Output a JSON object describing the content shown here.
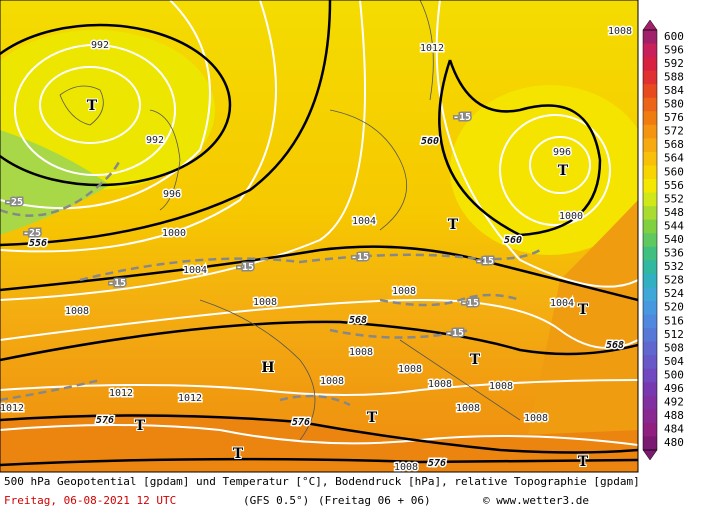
{
  "map": {
    "labels": [
      "992",
      "T",
      "992",
      "996",
      "1000",
      "1004",
      "1008",
      "1008",
      "1012",
      "1008",
      "1008",
      "1004",
      "T",
      "996",
      "T",
      "1000",
      "560",
      "560",
      "568",
      "568",
      "576",
      "576",
      "576",
      "556",
      "-15",
      "-15",
      "-15",
      "-15",
      "-15",
      "-15",
      "-15",
      "-25",
      "-25",
      "1004",
      "T",
      "T",
      "1008",
      "1008",
      "1008",
      "1008",
      "1008",
      "H",
      "1012",
      "1012",
      "1012",
      "T",
      "T",
      "T",
      "T",
      "1008",
      "1008",
      "1008"
    ]
  },
  "legend": {
    "levels": [
      600,
      596,
      592,
      588,
      584,
      580,
      576,
      572,
      568,
      564,
      560,
      556,
      552,
      548,
      544,
      540,
      536,
      532,
      528,
      524,
      520,
      516,
      512,
      508,
      504,
      500,
      496,
      492,
      488,
      484,
      480
    ],
    "colors": [
      "#a0206a",
      "#c8205a",
      "#d82040",
      "#e03030",
      "#e84a20",
      "#ec6418",
      "#f07c10",
      "#f49410",
      "#f6aa10",
      "#f8c008",
      "#f8d400",
      "#f4e800",
      "#d0e818",
      "#a8dc30",
      "#80d040",
      "#60c860",
      "#40c080",
      "#30b8a0",
      "#30b0c0",
      "#40a8d8",
      "#4898e0",
      "#5088e0",
      "#5878d8",
      "#6068d0",
      "#6858c8",
      "#7048c0",
      "#7838b0",
      "#8030a0",
      "#882890",
      "#902080",
      "#7a1a70"
    ]
  },
  "footer": {
    "title": "500 hPa Geopotential [gpdam] und Temperatur [°C], Bodendruck [hPa], relative Topographie [gpdam]",
    "date": "Freitag, 06-08-2021  12 UTC",
    "model": "(GFS 0.5°)",
    "run": "(Freitag 06 + 06)",
    "credit": "© www.wetter3.de"
  }
}
